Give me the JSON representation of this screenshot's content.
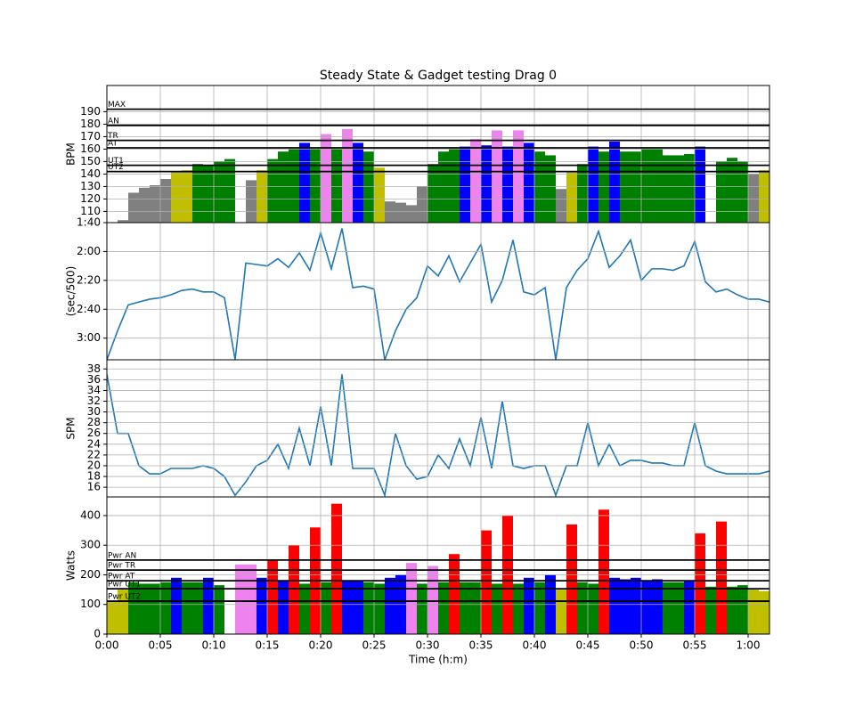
{
  "chart_data": [
    {
      "type": "zone-bar",
      "title": "Steady State & Gadget testing Drag 0",
      "y_label": "BPM",
      "x": [
        0,
        1,
        2,
        3,
        4,
        5,
        6,
        7,
        8,
        9,
        10,
        11,
        12,
        13,
        14,
        15,
        16,
        17,
        18,
        19,
        20,
        21,
        22,
        23,
        24,
        25,
        26,
        27,
        28,
        29,
        30,
        31,
        32,
        33,
        34,
        35,
        36,
        37,
        38,
        39,
        40,
        41,
        42,
        43,
        44,
        45,
        46,
        47,
        48,
        49,
        50,
        51,
        52,
        53,
        54,
        55,
        56,
        57,
        58,
        59,
        60,
        61,
        62
      ],
      "values": [
        null,
        103,
        125,
        129,
        131,
        136,
        142,
        143,
        148,
        147,
        150,
        152,
        null,
        135,
        143,
        152,
        158,
        160,
        165,
        160,
        172,
        160,
        176,
        165,
        158,
        145,
        118,
        117,
        115,
        130,
        148,
        158,
        160,
        162,
        168,
        163,
        175,
        162,
        175,
        165,
        158,
        155,
        128,
        142,
        148,
        162,
        158,
        166,
        158,
        158,
        160,
        160,
        155,
        155,
        156,
        162,
        null,
        150,
        153,
        150,
        140,
        143,
        143
      ],
      "base_color": "gray",
      "zones": [
        {
          "name": "UT2",
          "value": 142,
          "color": "#bfbf00"
        },
        {
          "name": "UT1",
          "value": 147,
          "color": "green"
        },
        {
          "name": "AT",
          "value": 161,
          "color": "blue"
        },
        {
          "name": "TR",
          "value": 167,
          "color": "violet"
        },
        {
          "name": "AN",
          "value": 179,
          "color": "red"
        },
        {
          "name": "MAX",
          "value": 192,
          "color": "red"
        }
      ],
      "xlim": [
        0,
        62
      ],
      "ylim": [
        101,
        211
      ],
      "yticks": [
        110,
        120,
        130,
        140,
        150,
        160,
        170,
        180,
        190
      ],
      "grid": true
    },
    {
      "type": "line",
      "y_label": "(sec/500)",
      "color": "#1f77b4",
      "x": [
        0,
        1,
        2,
        3,
        4,
        5,
        6,
        7,
        8,
        9,
        10,
        11,
        12,
        13,
        14,
        15,
        16,
        17,
        18,
        19,
        20,
        21,
        22,
        23,
        24,
        25,
        26,
        27,
        28,
        29,
        30,
        31,
        32,
        33,
        34,
        35,
        36,
        37,
        38,
        39,
        40,
        41,
        42,
        43,
        44,
        45,
        46,
        47,
        48,
        49,
        50,
        51,
        52,
        53,
        54,
        55,
        56,
        57,
        58,
        59,
        60,
        61,
        62
      ],
      "values": [
        195,
        175,
        157,
        155,
        153,
        152,
        150,
        147,
        146,
        148,
        148,
        152,
        195,
        128,
        129,
        130,
        125,
        131,
        121,
        133,
        107,
        132,
        104,
        145,
        144,
        146,
        195,
        175,
        160,
        152,
        130,
        137,
        123,
        141,
        128,
        115,
        155,
        140,
        112,
        148,
        150,
        145,
        195,
        145,
        133,
        125,
        106,
        131,
        123,
        112,
        140,
        132,
        132,
        133,
        130,
        113,
        141,
        148,
        146,
        150,
        153,
        153,
        155
      ],
      "xlim": [
        0,
        62
      ],
      "ylim": [
        195,
        100
      ],
      "yticks": [
        {
          "value": 100,
          "label": "1:40"
        },
        {
          "value": 120,
          "label": "2:00"
        },
        {
          "value": 140,
          "label": "2:20"
        },
        {
          "value": 160,
          "label": "2:40"
        },
        {
          "value": 180,
          "label": "3:00"
        }
      ],
      "grid": true
    },
    {
      "type": "line",
      "y_label": "SPM",
      "color": "#1f77b4",
      "x": [
        0,
        1,
        2,
        3,
        4,
        5,
        6,
        7,
        8,
        9,
        10,
        11,
        12,
        13,
        14,
        15,
        16,
        17,
        18,
        19,
        20,
        21,
        22,
        23,
        24,
        25,
        26,
        27,
        28,
        29,
        30,
        31,
        32,
        33,
        34,
        35,
        36,
        37,
        38,
        39,
        40,
        41,
        42,
        43,
        44,
        45,
        46,
        47,
        48,
        49,
        50,
        51,
        52,
        53,
        54,
        55,
        56,
        57,
        58,
        59,
        60,
        61,
        62
      ],
      "values": [
        37,
        26,
        26,
        20,
        18.5,
        18.5,
        19.5,
        19.5,
        19.5,
        20,
        19.5,
        18,
        14.5,
        17,
        20,
        21,
        24,
        19.5,
        27,
        20,
        31,
        20,
        37,
        19.5,
        19.5,
        19.5,
        14.5,
        26,
        20,
        17.5,
        18,
        22,
        19.5,
        25,
        20,
        29,
        19.5,
        32,
        20,
        19.5,
        20,
        20,
        14.5,
        20,
        20,
        28,
        20,
        24,
        20,
        21,
        21,
        20.5,
        20.5,
        20,
        20,
        28,
        20,
        19,
        18.5,
        18.5,
        18.5,
        18.5,
        19
      ],
      "xlim": [
        0,
        62
      ],
      "ylim": [
        14.2,
        39.7
      ],
      "yticks": [
        16,
        18,
        20,
        22,
        24,
        26,
        28,
        30,
        32,
        34,
        36,
        38
      ],
      "grid": true
    },
    {
      "type": "zone-bar",
      "y_label": "Watts",
      "x_label": "Time (h:m)",
      "x": [
        0,
        1,
        2,
        3,
        4,
        5,
        6,
        7,
        8,
        9,
        10,
        11,
        12,
        13,
        14,
        15,
        16,
        17,
        18,
        19,
        20,
        21,
        22,
        23,
        24,
        25,
        26,
        27,
        28,
        29,
        30,
        31,
        32,
        33,
        34,
        35,
        36,
        37,
        38,
        39,
        40,
        41,
        42,
        43,
        44,
        45,
        46,
        47,
        48,
        49,
        50,
        51,
        52,
        53,
        54,
        55,
        56,
        57,
        58,
        59,
        60,
        61,
        62
      ],
      "values": [
        110,
        150,
        175,
        170,
        170,
        175,
        190,
        175,
        175,
        190,
        165,
        null,
        235,
        235,
        190,
        250,
        180,
        300,
        170,
        360,
        175,
        440,
        180,
        180,
        175,
        170,
        190,
        200,
        240,
        170,
        230,
        175,
        270,
        175,
        175,
        350,
        170,
        400,
        170,
        190,
        175,
        200,
        150,
        370,
        175,
        170,
        420,
        190,
        185,
        190,
        180,
        185,
        175,
        175,
        180,
        340,
        160,
        380,
        160,
        165,
        150,
        145,
        145
      ],
      "base_color": "#bfbf00",
      "zones": [
        {
          "name": "Pwr UT2",
          "value": 111,
          "color": "#bfbf00"
        },
        {
          "name": "Pwr UT1",
          "value": 153,
          "color": "green"
        },
        {
          "name": "Pwr AT",
          "value": 180,
          "color": "blue"
        },
        {
          "name": "Pwr TR",
          "value": 216,
          "color": "violet"
        },
        {
          "name": "Pwr AN",
          "value": 250,
          "color": "red"
        }
      ],
      "xlim": [
        0,
        62
      ],
      "ylim": [
        0,
        463
      ],
      "yticks": [
        0,
        100,
        200,
        300,
        400
      ],
      "xticks": [
        {
          "value": 0,
          "label": "0:00"
        },
        {
          "value": 5,
          "label": "0:05"
        },
        {
          "value": 10,
          "label": "0:10"
        },
        {
          "value": 15,
          "label": "0:15"
        },
        {
          "value": 20,
          "label": "0:20"
        },
        {
          "value": 25,
          "label": "0:25"
        },
        {
          "value": 30,
          "label": "0:30"
        },
        {
          "value": 35,
          "label": "0:35"
        },
        {
          "value": 40,
          "label": "0:40"
        },
        {
          "value": 45,
          "label": "0:45"
        },
        {
          "value": 50,
          "label": "0:50"
        },
        {
          "value": 55,
          "label": "0:55"
        },
        {
          "value": 60,
          "label": "1:00"
        }
      ],
      "grid": true
    }
  ]
}
